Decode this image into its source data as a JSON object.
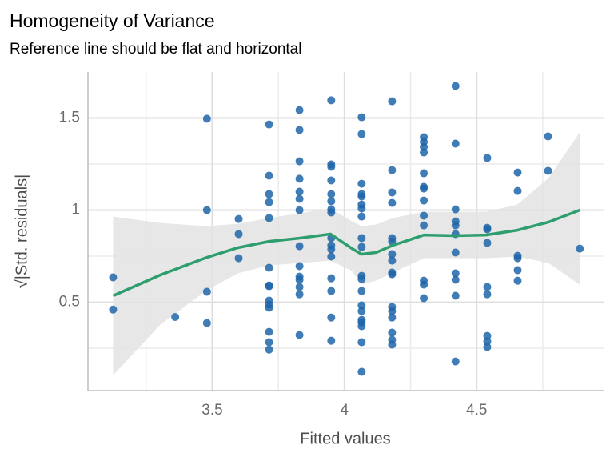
{
  "chart_data": {
    "type": "scatter",
    "title": "Homogeneity of Variance",
    "subtitle": "Reference line should be flat and horizontal",
    "x_label": "Fitted values",
    "y_label": "√|Std. residuals|",
    "xlim": [
      3.03,
      4.98
    ],
    "ylim": [
      0.02,
      1.75
    ],
    "xticks": [
      3.5,
      4.0,
      4.5
    ],
    "yticks": [
      0.5,
      1.0,
      1.5
    ],
    "grid": true,
    "series": [
      {
        "color": "#1f65a8",
        "x": [
          3.125,
          3.125,
          3.36,
          3.48,
          3.48,
          3.48,
          3.48,
          3.6,
          3.6,
          3.6,
          3.715,
          3.715,
          3.715,
          3.715,
          3.715,
          3.715,
          3.715,
          3.715,
          3.715,
          3.715,
          3.715,
          3.715,
          3.715,
          3.715,
          3.83,
          3.83,
          3.83,
          3.83,
          3.83,
          3.83,
          3.83,
          3.83,
          3.83,
          3.83,
          3.83,
          3.83,
          3.83,
          3.83,
          3.95,
          3.95,
          3.95,
          3.95,
          3.95,
          3.95,
          3.95,
          3.95,
          3.95,
          3.95,
          3.95,
          3.95,
          3.95,
          3.95,
          3.95,
          3.95,
          4.065,
          4.065,
          4.065,
          4.065,
          4.065,
          4.065,
          4.065,
          4.065,
          4.065,
          4.065,
          4.065,
          4.065,
          4.065,
          4.065,
          4.065,
          4.065,
          4.065,
          4.065,
          4.065,
          4.065,
          4.18,
          4.18,
          4.18,
          4.18,
          4.18,
          4.18,
          4.18,
          4.18,
          4.18,
          4.18,
          4.18,
          4.18,
          4.18,
          4.18,
          4.18,
          4.18,
          4.3,
          4.3,
          4.3,
          4.3,
          4.3,
          4.3,
          4.3,
          4.3,
          4.3,
          4.3,
          4.3,
          4.3,
          4.3,
          4.42,
          4.42,
          4.42,
          4.42,
          4.42,
          4.42,
          4.42,
          4.42,
          4.42,
          4.42,
          4.42,
          4.54,
          4.54,
          4.54,
          4.54,
          4.54,
          4.54,
          4.54,
          4.54,
          4.54,
          4.655,
          4.655,
          4.655,
          4.655,
          4.655,
          4.655,
          4.77,
          4.77,
          4.89
        ],
        "values": [
          0.635,
          0.46,
          0.42,
          1.496,
          1.0,
          0.557,
          0.387,
          0.952,
          0.87,
          0.739,
          1.465,
          1.187,
          1.087,
          1.043,
          0.957,
          0.687,
          0.591,
          0.587,
          0.509,
          0.487,
          0.47,
          0.339,
          0.283,
          0.243,
          1.543,
          1.435,
          1.265,
          1.17,
          1.1,
          1.061,
          1.0,
          0.804,
          0.696,
          0.639,
          0.622,
          0.583,
          0.543,
          0.322,
          1.596,
          1.248,
          1.235,
          1.161,
          1.087,
          1.048,
          1.004,
          0.987,
          0.848,
          0.809,
          0.787,
          0.748,
          0.63,
          0.561,
          0.417,
          0.291,
          1.504,
          1.413,
          1.143,
          1.087,
          1.074,
          1.03,
          1.009,
          0.965,
          0.848,
          0.8,
          0.643,
          0.626,
          0.561,
          0.483,
          0.452,
          0.404,
          0.391,
          0.37,
          0.283,
          0.122,
          1.591,
          1.217,
          1.096,
          1.039,
          0.848,
          0.83,
          0.761,
          0.726,
          0.661,
          0.652,
          0.474,
          0.452,
          0.417,
          0.335,
          0.296,
          0.27,
          1.396,
          1.37,
          1.343,
          1.313,
          1.2,
          1.126,
          1.117,
          1.052,
          0.97,
          0.917,
          0.617,
          0.596,
          0.522,
          1.674,
          1.361,
          1.004,
          0.939,
          0.917,
          0.87,
          0.77,
          0.657,
          0.622,
          0.535,
          0.178,
          1.283,
          0.904,
          0.896,
          0.822,
          0.583,
          0.543,
          0.317,
          0.287,
          0.257,
          1.204,
          1.104,
          0.752,
          0.739,
          0.674,
          0.617,
          1.4,
          1.213,
          0.791
        ]
      }
    ],
    "smooth": {
      "color": "#2e9e6e",
      "band_color": "#e3e3e3",
      "x": [
        3.125,
        3.304,
        3.479,
        3.597,
        3.715,
        3.832,
        3.947,
        4.029,
        4.065,
        4.12,
        4.183,
        4.301,
        4.418,
        4.536,
        4.654,
        4.772,
        4.89
      ],
      "values": [
        0.535,
        0.648,
        0.743,
        0.796,
        0.83,
        0.848,
        0.87,
        0.791,
        0.761,
        0.77,
        0.809,
        0.865,
        0.861,
        0.865,
        0.891,
        0.935,
        1.0
      ],
      "ymin": [
        0.104,
        0.378,
        0.565,
        0.657,
        0.7,
        0.713,
        0.726,
        0.67,
        0.596,
        0.617,
        0.661,
        0.739,
        0.739,
        0.739,
        0.748,
        0.713,
        0.596
      ],
      "ymax": [
        0.965,
        0.93,
        0.913,
        0.926,
        0.957,
        0.983,
        1.009,
        0.939,
        0.913,
        0.922,
        0.957,
        0.991,
        0.991,
        0.991,
        1.03,
        1.174,
        1.422
      ]
    }
  }
}
